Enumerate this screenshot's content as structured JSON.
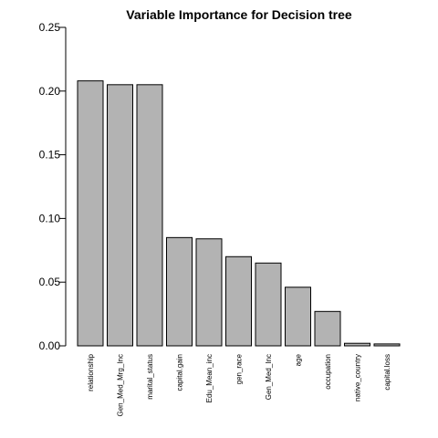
{
  "chart_data": {
    "type": "bar",
    "title": "Variable Importance for Decision tree",
    "xlabel": "",
    "ylabel": "",
    "ylim": [
      0,
      0.25
    ],
    "yticks": [
      "0.00",
      "0.05",
      "0.10",
      "0.15",
      "0.20",
      "0.25"
    ],
    "categories": [
      "relationship",
      "Gen_Med_Mrg_Inc",
      "marital_status",
      "capital.gain",
      "Edu_Mean_inc",
      "gen_race",
      "Gen_Med_Inc",
      "age",
      "occupation",
      "native_country",
      "capital.loss"
    ],
    "values": [
      0.208,
      0.205,
      0.205,
      0.085,
      0.084,
      0.07,
      0.065,
      0.046,
      0.027,
      0.002,
      0.0015
    ],
    "bar_color": "#b3b3b3",
    "grid": false,
    "legend": "none"
  }
}
